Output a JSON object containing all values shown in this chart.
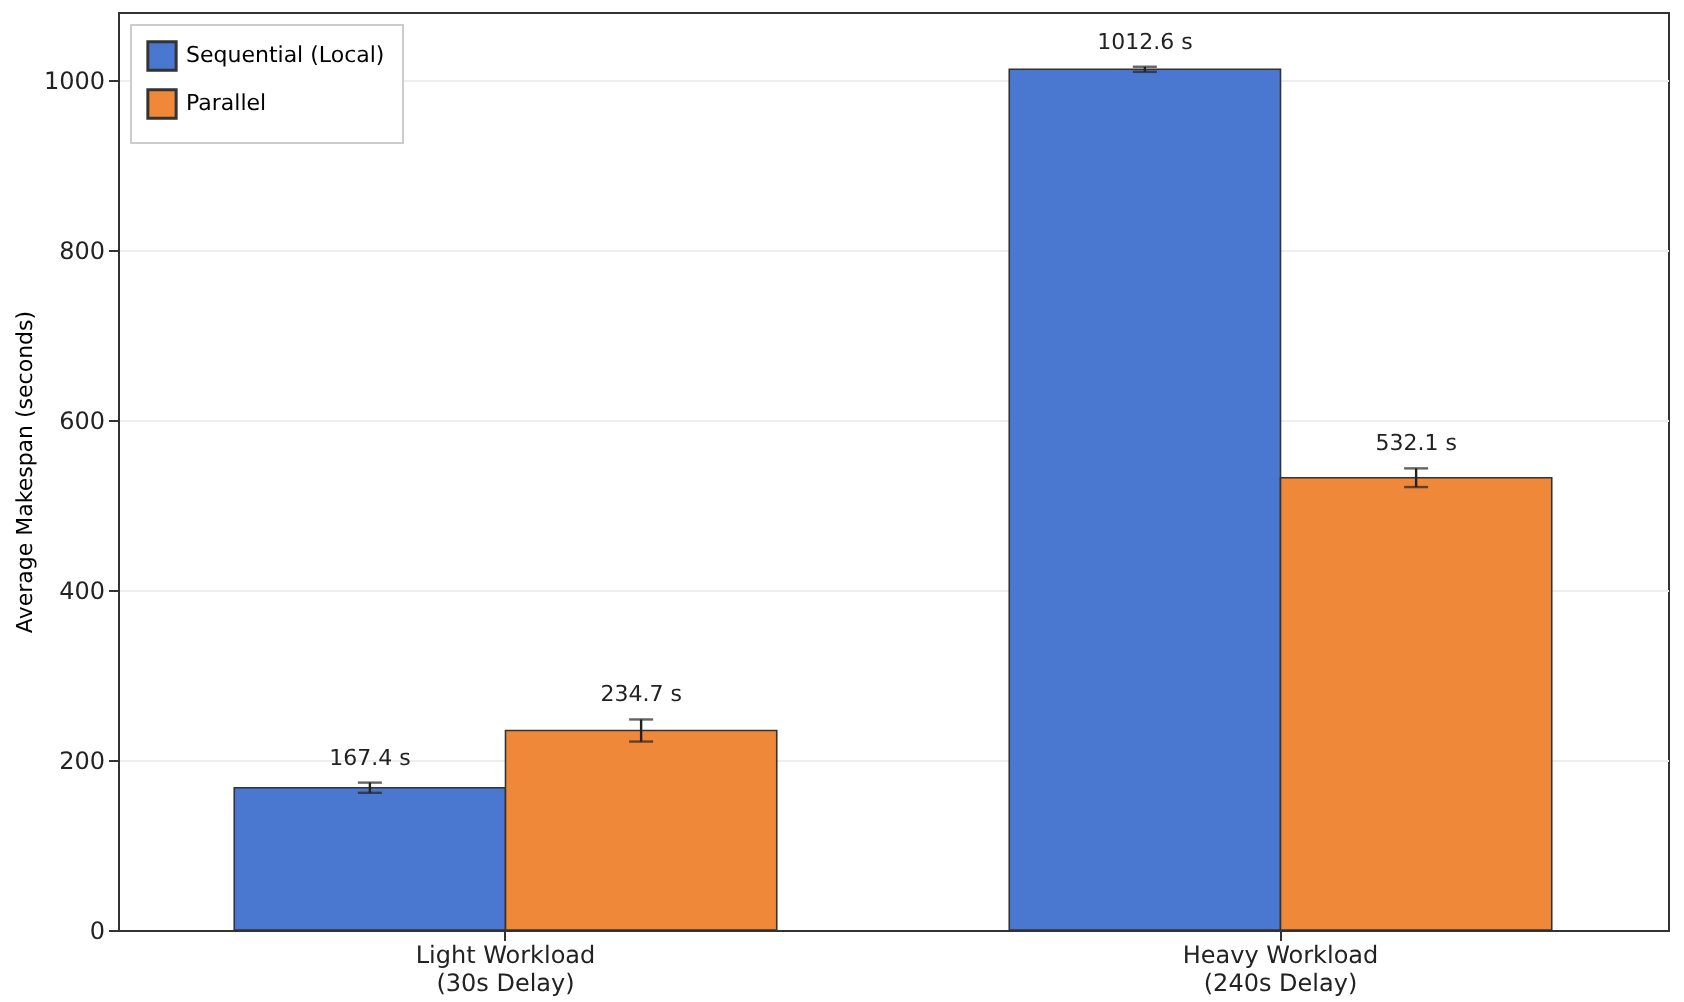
{
  "chart_data": {
    "type": "bar",
    "ylabel": "Average Makespan (seconds)",
    "categories": [
      "Light Workload\n(30s Delay)",
      "Heavy Workload\n(240s Delay)"
    ],
    "series": [
      {
        "name": "Sequential (Local)",
        "color": "#4a78d0",
        "values": [
          167.4,
          1012.6
        ],
        "errors": [
          6,
          3
        ],
        "value_labels": [
          "167.4 s",
          "1012.6 s"
        ]
      },
      {
        "name": "Parallel",
        "color": "#f0883a",
        "values": [
          234.7,
          532.1
        ],
        "errors": [
          13,
          11
        ],
        "value_labels": [
          "234.7 s",
          "532.1 s"
        ]
      }
    ],
    "ylim": [
      0,
      1080
    ],
    "yticks": [
      0,
      200,
      400,
      600,
      800,
      1000
    ],
    "grid": "y",
    "legend": "top left"
  }
}
